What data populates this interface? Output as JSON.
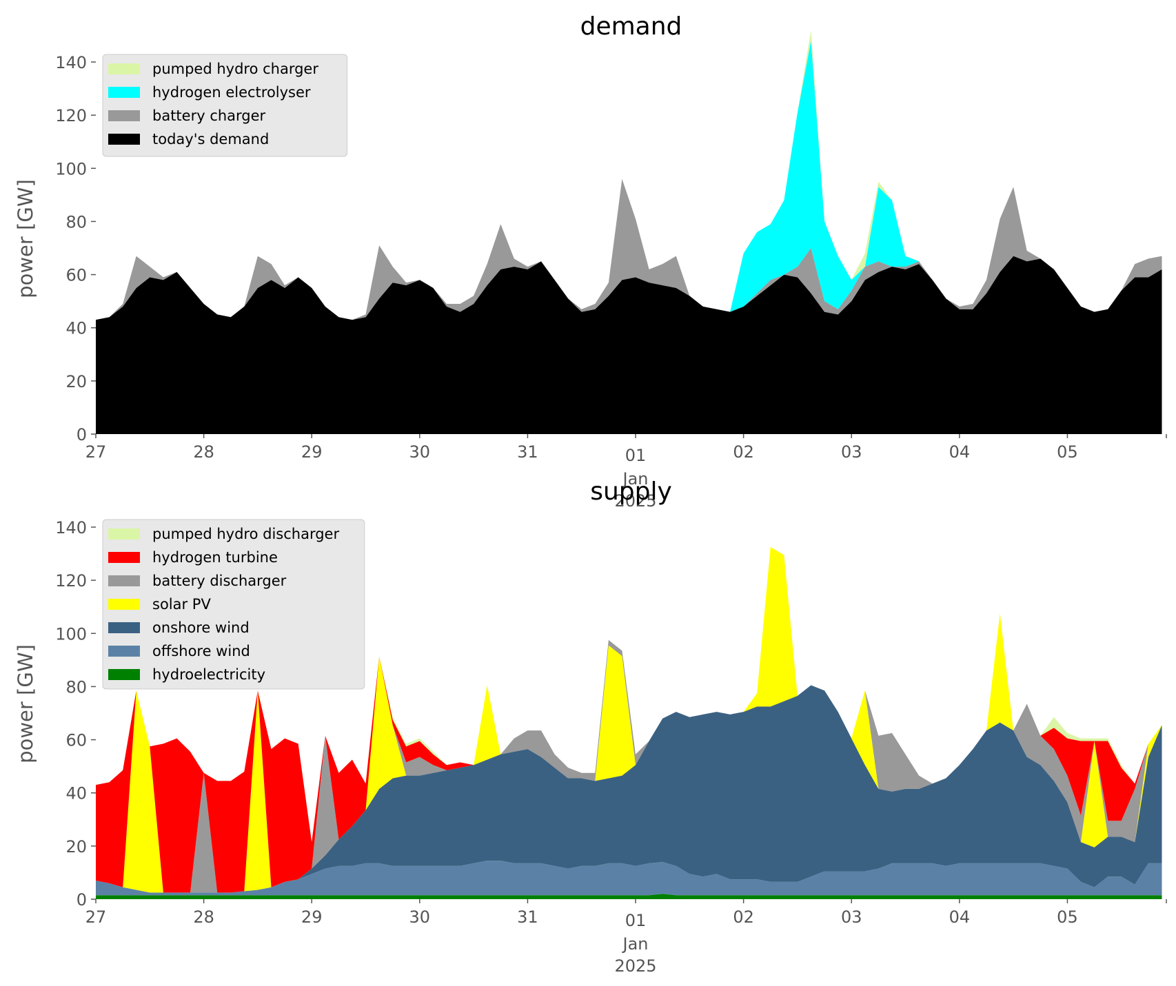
{
  "chart_data": [
    {
      "type": "area",
      "stacked": true,
      "title": "demand",
      "ylabel": "power [GW]",
      "xlabel": "",
      "ylim": [
        0,
        147
      ],
      "x_hours": [
        0,
        3,
        6,
        9,
        12,
        15,
        18,
        21,
        24,
        27,
        30,
        33,
        36,
        39,
        42,
        45,
        48,
        51,
        54,
        57,
        60,
        63,
        66,
        69,
        72,
        75,
        78,
        81,
        84,
        87,
        90,
        93,
        96,
        99,
        102,
        105,
        108,
        111,
        114,
        117,
        120,
        123,
        126,
        129,
        132,
        135,
        138,
        141,
        144,
        147,
        150,
        153,
        156,
        159,
        162,
        165,
        168,
        171,
        174,
        177,
        180,
        183,
        186,
        189,
        192,
        195,
        198,
        201,
        204,
        207,
        210,
        213,
        216,
        219,
        222,
        225,
        228,
        231,
        234,
        237
      ],
      "x_ticks": [
        "27",
        "28",
        "29",
        "30",
        "31",
        "01",
        "02",
        "03",
        "04",
        "05"
      ],
      "x_tick_sublabel": [
        "Jan",
        "2025"
      ],
      "y_ticks": [
        0,
        20,
        40,
        60,
        80,
        100,
        120,
        140
      ],
      "legend_position": "upper-left",
      "series": [
        {
          "name": "today's demand",
          "color": "#000000",
          "values": [
            43,
            44,
            48,
            55,
            59,
            58,
            61,
            55,
            49,
            45,
            44,
            48,
            55,
            58,
            55,
            59,
            55,
            48,
            44,
            43,
            44,
            51,
            57,
            56,
            58,
            55,
            48,
            46,
            49,
            56,
            62,
            63,
            62,
            65,
            58,
            51,
            46,
            47,
            52,
            58,
            59,
            57,
            56,
            55,
            52,
            48,
            47,
            46,
            48,
            52,
            56,
            60,
            59,
            53,
            46,
            45,
            50,
            58,
            61,
            63,
            62,
            64,
            58,
            51,
            47,
            47,
            53,
            61,
            67,
            65,
            66,
            62,
            55,
            48,
            46,
            47,
            54,
            59,
            59,
            62
          ]
        },
        {
          "name": "battery charger",
          "color": "#999999",
          "values": [
            0,
            0,
            1,
            12,
            4,
            1,
            0,
            0,
            0,
            0,
            0,
            0,
            12,
            6,
            1,
            0,
            0,
            0,
            0,
            0,
            1,
            20,
            6,
            1,
            0,
            0,
            1,
            3,
            3,
            8,
            17,
            3,
            1,
            0,
            0,
            0,
            1,
            2,
            5,
            38,
            22,
            5,
            8,
            12,
            0,
            0,
            0,
            0,
            0,
            1,
            2,
            0,
            4,
            17,
            4,
            2,
            4,
            5,
            4,
            0,
            1,
            1,
            0,
            0,
            1,
            2,
            5,
            20,
            26,
            4,
            0,
            0,
            0,
            0,
            0,
            0,
            0,
            5,
            7,
            5
          ]
        },
        {
          "name": "hydrogen electrolyser",
          "color": "#00ffff",
          "values": [
            0,
            0,
            0,
            0,
            0,
            0,
            0,
            0,
            0,
            0,
            0,
            0,
            0,
            0,
            0,
            0,
            0,
            0,
            0,
            0,
            0,
            0,
            0,
            0,
            0,
            0,
            0,
            0,
            0,
            0,
            0,
            0,
            0,
            0,
            0,
            0,
            0,
            0,
            0,
            0,
            0,
            0,
            0,
            0,
            0,
            0,
            0,
            0,
            20,
            23,
            21,
            28,
            58,
            78,
            30,
            20,
            4,
            0,
            28,
            25,
            4,
            0,
            0,
            0,
            0,
            0,
            0,
            0,
            0,
            0,
            0,
            0,
            0,
            0,
            0,
            0,
            0,
            0,
            0,
            0
          ]
        },
        {
          "name": "pumped hydro charger",
          "color": "#dbf5a6",
          "values": [
            0,
            0,
            0,
            0,
            0,
            0,
            0,
            0,
            0,
            0,
            0,
            0,
            0,
            0,
            0,
            0,
            0,
            0,
            0,
            0,
            0,
            0,
            0,
            0,
            0,
            0,
            0,
            0,
            0,
            0,
            0,
            0,
            0,
            0,
            0,
            0,
            0,
            0,
            0,
            0,
            0,
            0,
            0,
            0,
            0,
            0,
            0,
            0,
            0,
            0,
            0,
            0,
            0,
            4,
            0,
            0,
            0,
            5,
            2,
            0,
            0,
            0,
            0,
            0,
            0,
            0,
            0,
            0,
            0,
            0,
            0,
            0,
            0,
            0,
            0,
            0,
            0,
            0,
            0,
            0
          ]
        }
      ]
    },
    {
      "type": "area",
      "stacked": true,
      "title": "supply",
      "ylabel": "power [GW]",
      "xlabel": "Jan 2025",
      "ylim": [
        0,
        147
      ],
      "x_hours": [
        0,
        3,
        6,
        9,
        12,
        15,
        18,
        21,
        24,
        27,
        30,
        33,
        36,
        39,
        42,
        45,
        48,
        51,
        54,
        57,
        60,
        63,
        66,
        69,
        72,
        75,
        78,
        81,
        84,
        87,
        90,
        93,
        96,
        99,
        102,
        105,
        108,
        111,
        114,
        117,
        120,
        123,
        126,
        129,
        132,
        135,
        138,
        141,
        144,
        147,
        150,
        153,
        156,
        159,
        162,
        165,
        168,
        171,
        174,
        177,
        180,
        183,
        186,
        189,
        192,
        195,
        198,
        201,
        204,
        207,
        210,
        213,
        216,
        219,
        222,
        225,
        228,
        231,
        234,
        237
      ],
      "x_ticks": [
        "27",
        "28",
        "29",
        "30",
        "31",
        "01",
        "02",
        "03",
        "04",
        "05"
      ],
      "x_tick_sublabel": [
        "Jan",
        "2025"
      ],
      "y_ticks": [
        0,
        20,
        40,
        60,
        80,
        100,
        120,
        140
      ],
      "legend_position": "upper-left",
      "series": [
        {
          "name": "hydroelectricity",
          "color": "#008000",
          "values": [
            1.5,
            1.5,
            1.5,
            1.5,
            1.5,
            1.5,
            1.5,
            1.5,
            1.5,
            1.5,
            1.5,
            1.5,
            1.5,
            1.5,
            1.5,
            1.5,
            1.5,
            1.5,
            1.5,
            1.5,
            1.5,
            1.5,
            1.5,
            1.5,
            1.5,
            1.5,
            1.5,
            1.5,
            1.5,
            1.5,
            1.5,
            1.5,
            1.5,
            1.5,
            1.5,
            1.5,
            1.5,
            1.5,
            1.5,
            1.5,
            1.5,
            1.5,
            2,
            1.5,
            1.5,
            1.5,
            1.5,
            1.5,
            1.5,
            1.5,
            1.5,
            1.5,
            1.5,
            1.5,
            1.5,
            1.5,
            1.5,
            1.5,
            1.5,
            1.5,
            1.5,
            1.5,
            1.5,
            1.5,
            1.5,
            1.5,
            1.5,
            1.5,
            1.5,
            1.5,
            1.5,
            1.5,
            1.5,
            1.5,
            1.5,
            1.5,
            1.5,
            1.5,
            1.5,
            1.5
          ]
        },
        {
          "name": "offshore wind",
          "color": "#5b82a6",
          "values": [
            5.5,
            4.5,
            3,
            2,
            1,
            1,
            1,
            1,
            1,
            1,
            1,
            1.5,
            2,
            3,
            5,
            6,
            8,
            10,
            11,
            11,
            12,
            12,
            11,
            11,
            11,
            11,
            11,
            11,
            12,
            13,
            13,
            12,
            12,
            12,
            11,
            10,
            11,
            11,
            12,
            12,
            11,
            12,
            12,
            11,
            8,
            7,
            8,
            6,
            6,
            6,
            5,
            5,
            5,
            7,
            9,
            9,
            9,
            9,
            10,
            12,
            12,
            12,
            12,
            11,
            12,
            12,
            12,
            12,
            12,
            12,
            12,
            11,
            10,
            5,
            3,
            7,
            7,
            4,
            12,
            12
          ]
        },
        {
          "name": "onshore wind",
          "color": "#3b6182",
          "values": [
            0,
            0,
            0,
            0,
            0,
            0,
            0,
            0,
            0,
            0,
            0,
            0,
            0,
            0,
            0,
            0,
            2,
            5,
            10,
            15,
            20,
            28,
            33,
            34,
            34,
            35,
            36,
            37,
            37,
            38,
            40,
            42,
            43,
            40,
            37,
            34,
            33,
            32,
            32,
            33,
            38,
            46,
            54,
            58,
            59,
            61,
            61,
            62,
            63,
            65,
            66,
            68,
            70,
            72,
            68,
            60,
            50,
            40,
            30,
            27,
            28,
            28,
            30,
            33,
            37,
            43,
            50,
            53,
            50,
            40,
            37,
            32,
            25,
            15,
            15,
            15,
            15,
            16,
            40,
            52
          ]
        },
        {
          "name": "solar PV",
          "color": "#ffff00",
          "values": [
            0,
            0,
            0,
            75,
            55,
            0,
            0,
            0,
            0,
            0,
            0,
            0,
            75,
            0,
            0,
            0,
            0,
            0,
            0,
            0,
            0,
            50,
            20,
            0,
            0,
            0,
            0,
            0,
            0,
            28,
            0,
            0,
            0,
            0,
            0,
            0,
            0,
            0,
            50,
            45,
            0,
            0,
            0,
            0,
            0,
            0,
            0,
            0,
            0,
            5,
            60,
            55,
            0,
            0,
            0,
            0,
            0,
            28,
            0,
            0,
            0,
            0,
            0,
            0,
            0,
            0,
            0,
            41,
            0,
            0,
            0,
            0,
            0,
            0,
            40,
            0,
            0,
            0,
            5,
            0
          ]
        },
        {
          "name": "battery discharger",
          "color": "#999999",
          "values": [
            0,
            0,
            0,
            0,
            0,
            0,
            0,
            0,
            45,
            0,
            0,
            0,
            0,
            0,
            0,
            0,
            0,
            45,
            0,
            0,
            0,
            0,
            0,
            5,
            7,
            3,
            0,
            0,
            0,
            0,
            0,
            5,
            7,
            10,
            5,
            4,
            2,
            3,
            2,
            2,
            4,
            0,
            0,
            0,
            0,
            0,
            0,
            0,
            0,
            0,
            0,
            0,
            0,
            0,
            0,
            0,
            0,
            0,
            20,
            22,
            13,
            5,
            0,
            0,
            0,
            0,
            0,
            0,
            0,
            20,
            11,
            12,
            10,
            10,
            0,
            6,
            6,
            20,
            0,
            0
          ]
        },
        {
          "name": "hydrogen turbine",
          "color": "#ff0000",
          "values": [
            36,
            38,
            44,
            0,
            0,
            56,
            58,
            53,
            0,
            42,
            42,
            45,
            0,
            52,
            54,
            51,
            10,
            0,
            25,
            25,
            10,
            0,
            2,
            6,
            6,
            4,
            2,
            2,
            0,
            0,
            0,
            0,
            0,
            0,
            0,
            0,
            0,
            0,
            0,
            0,
            0,
            0,
            0,
            0,
            0,
            0,
            0,
            0,
            0,
            0,
            0,
            0,
            0,
            0,
            0,
            0,
            0,
            0,
            0,
            0,
            0,
            0,
            0,
            0,
            0,
            0,
            0,
            0,
            0,
            0,
            0,
            8,
            14,
            28,
            0,
            30,
            20,
            2,
            0,
            0
          ]
        },
        {
          "name": "pumped hydro discharger",
          "color": "#dbf5a6",
          "values": [
            0,
            0,
            0,
            0,
            0,
            0,
            0,
            0,
            0,
            0,
            0,
            0,
            0,
            0,
            0,
            0,
            0,
            0,
            0,
            0,
            0,
            0,
            1,
            1,
            1,
            1,
            0,
            0,
            0,
            0,
            0,
            0,
            0,
            0,
            0,
            0,
            0,
            0,
            0,
            0,
            0,
            0,
            0,
            0,
            0,
            0,
            0,
            0,
            0,
            0,
            0,
            0,
            0,
            0,
            0,
            0,
            0,
            0,
            0,
            0,
            0,
            0,
            0,
            0,
            0,
            0,
            0,
            0,
            0,
            0,
            0,
            4,
            2,
            1,
            1,
            1,
            1,
            0,
            0,
            0
          ]
        }
      ]
    }
  ]
}
